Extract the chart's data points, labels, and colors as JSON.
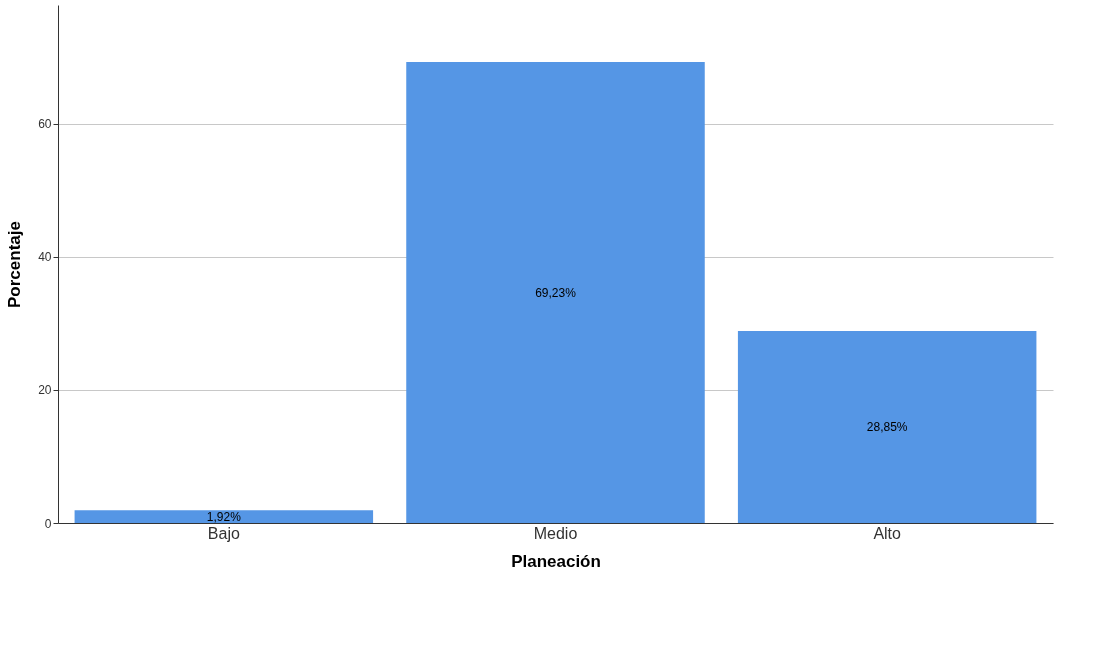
{
  "chart_data": {
    "type": "bar",
    "xlabel": "Planeación",
    "ylabel": "Porcentaje",
    "categories": [
      "Bajo",
      "Medio",
      "Alto"
    ],
    "values": [
      1.92,
      69.23,
      28.85
    ],
    "value_labels": [
      "1,92%",
      "69,23%",
      "28,85%"
    ],
    "color": "#5596e5",
    "ylim": [
      0,
      77.8
    ],
    "yticks": [
      0,
      20,
      40,
      60
    ],
    "grid": "y"
  }
}
